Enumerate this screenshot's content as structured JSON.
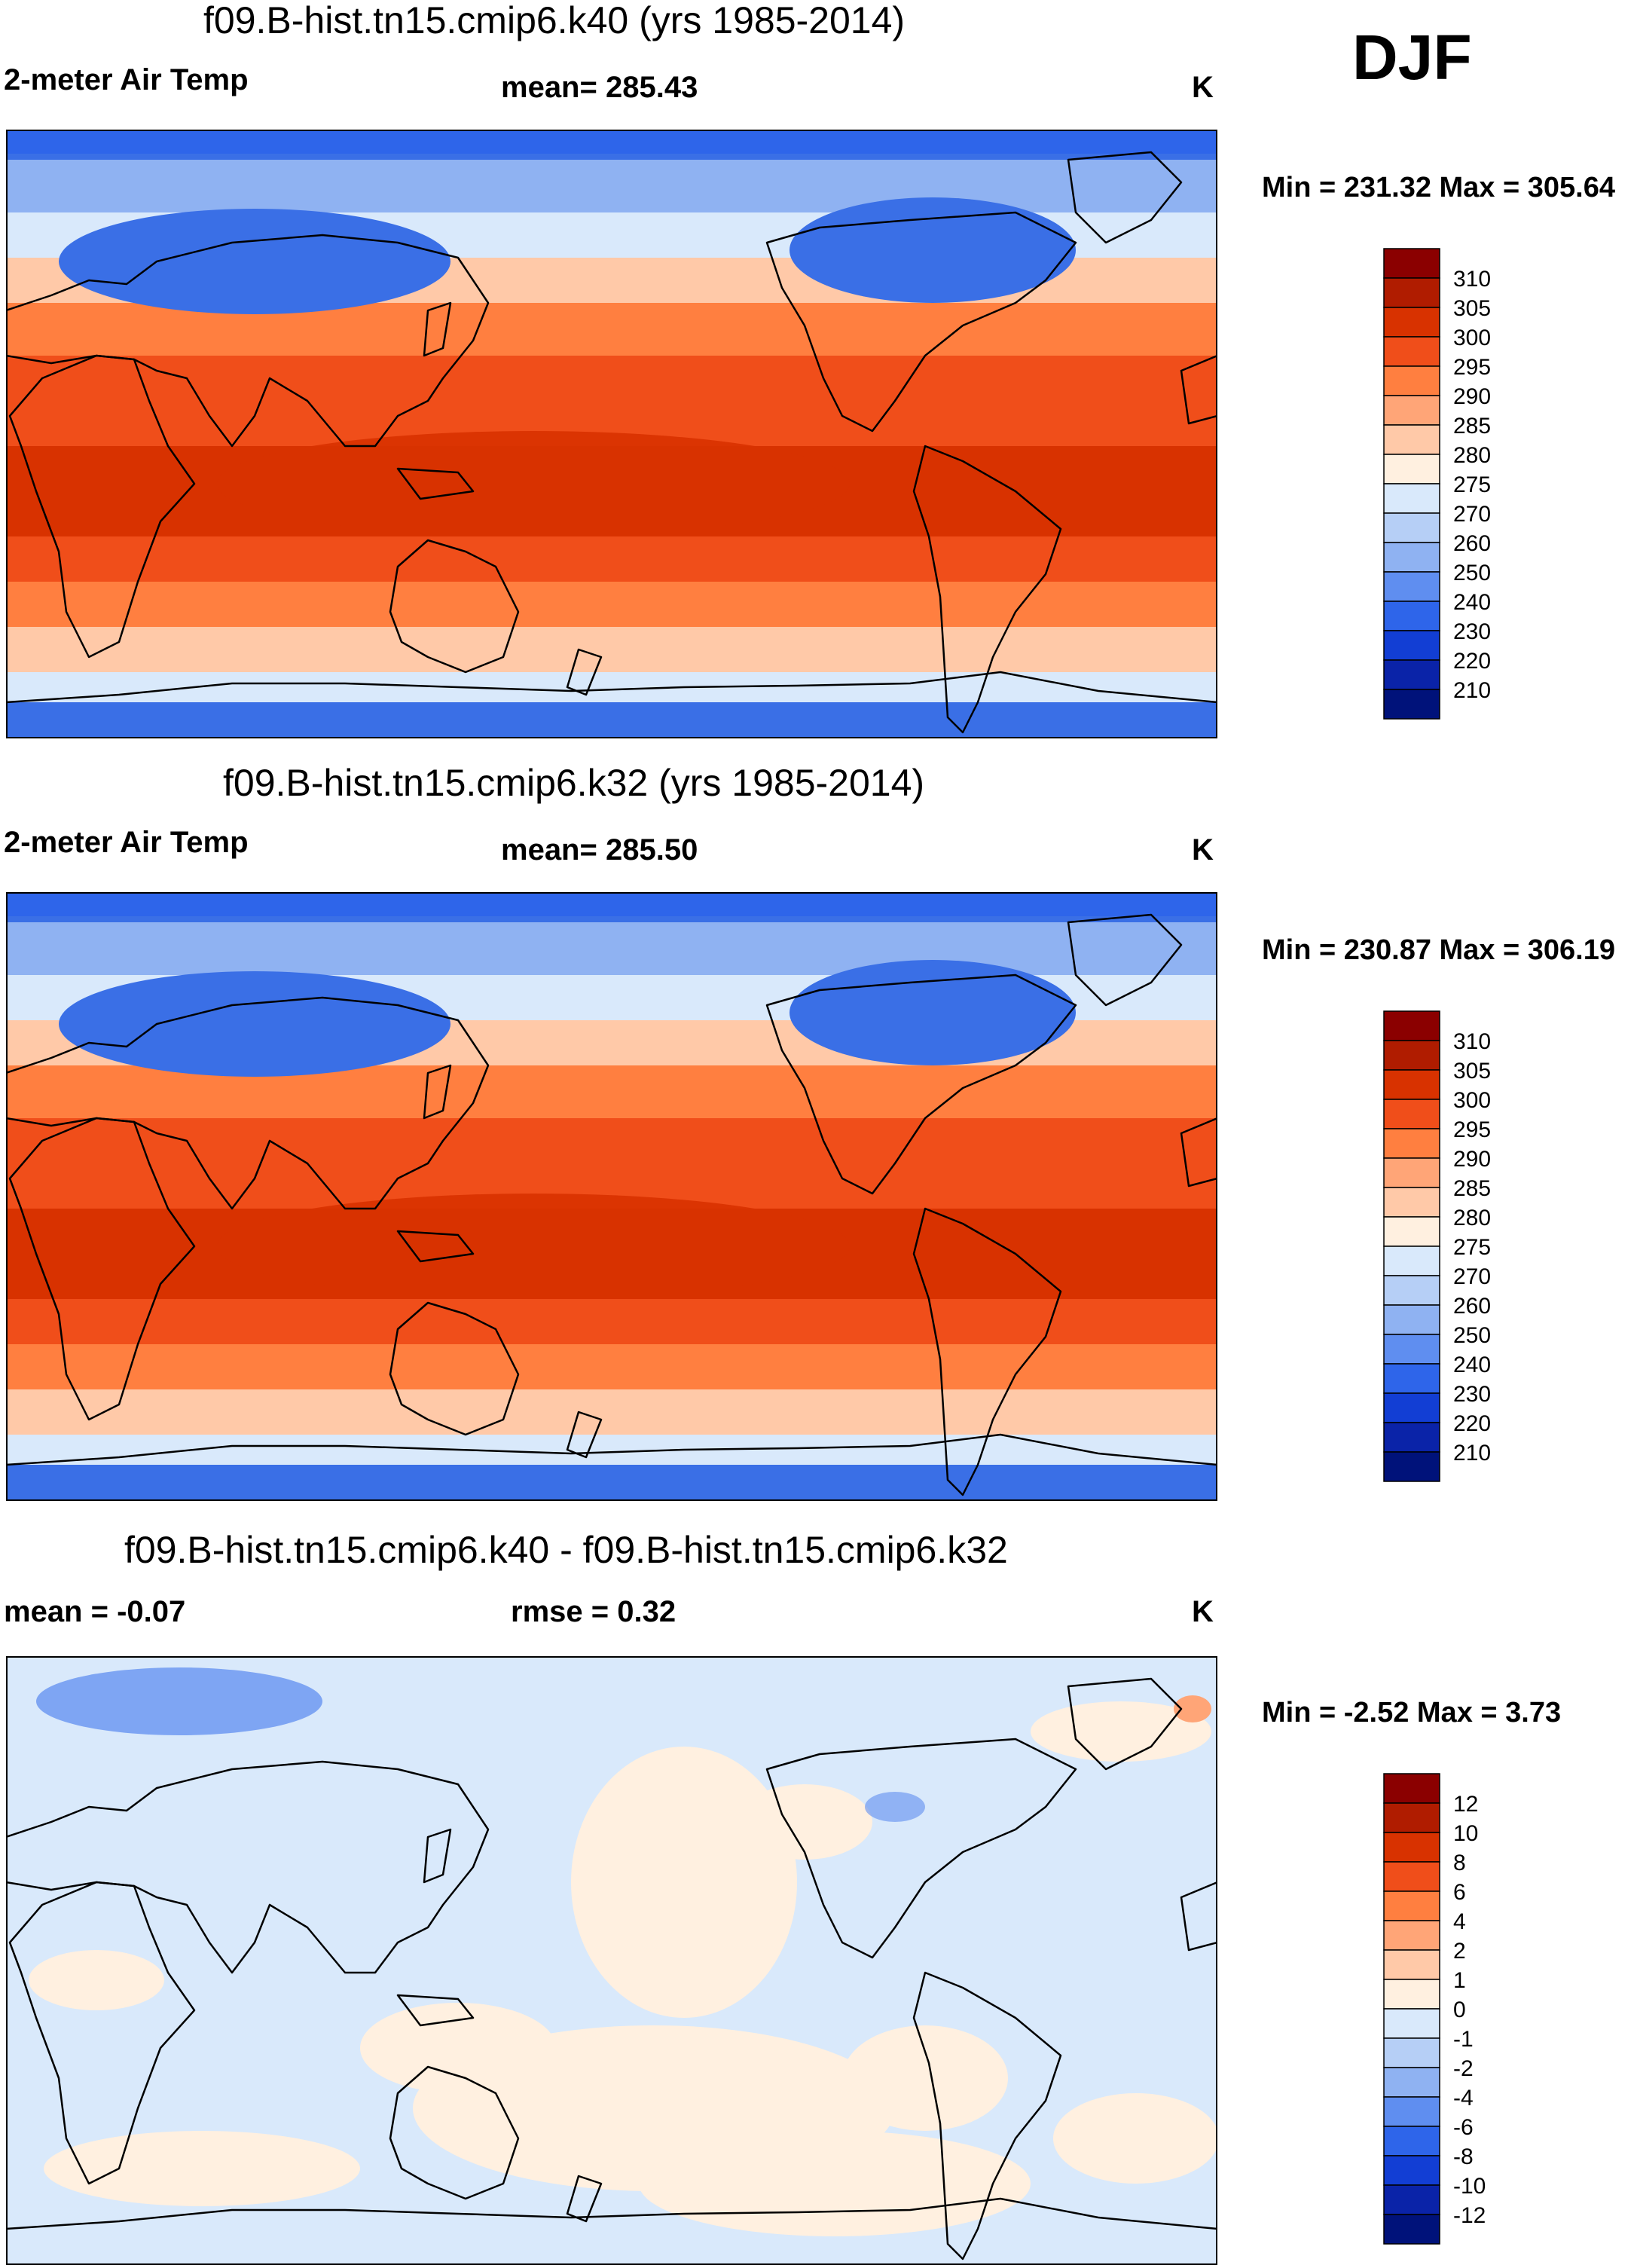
{
  "season": "DJF",
  "panels": [
    {
      "title": "f09.B-hist.tn15.cmip6.k40 (yrs 1985-2014)",
      "variable": "2-meter Air Temp",
      "stat_center": "mean= 285.43",
      "units": "K",
      "minmax": "Min = 231.32 Max = 305.64",
      "colorbar": {
        "labels": [
          "310",
          "305",
          "300",
          "295",
          "290",
          "285",
          "280",
          "275",
          "270",
          "260",
          "250",
          "240",
          "230",
          "220",
          "210"
        ],
        "colors": [
          "#8b0000",
          "#b01c00",
          "#d83200",
          "#f04e1a",
          "#ff7f40",
          "#ffa577",
          "#ffc9a8",
          "#fff0e0",
          "#d9e9fb",
          "#b6cff6",
          "#8fb2f2",
          "#5f8ef0",
          "#2e65ea",
          "#123ed4",
          "#0a23a8",
          "#00127a"
        ]
      }
    },
    {
      "title": "f09.B-hist.tn15.cmip6.k32 (yrs 1985-2014)",
      "variable": "2-meter Air Temp",
      "stat_center": "mean= 285.50",
      "units": "K",
      "minmax": "Min = 230.87 Max = 306.19",
      "colorbar": {
        "labels": [
          "310",
          "305",
          "300",
          "295",
          "290",
          "285",
          "280",
          "275",
          "270",
          "260",
          "250",
          "240",
          "230",
          "220",
          "210"
        ],
        "colors": [
          "#8b0000",
          "#b01c00",
          "#d83200",
          "#f04e1a",
          "#ff7f40",
          "#ffa577",
          "#ffc9a8",
          "#fff0e0",
          "#d9e9fb",
          "#b6cff6",
          "#8fb2f2",
          "#5f8ef0",
          "#2e65ea",
          "#123ed4",
          "#0a23a8",
          "#00127a"
        ]
      }
    },
    {
      "title": "f09.B-hist.tn15.cmip6.k40 - f09.B-hist.tn15.cmip6.k32",
      "variable": "mean =  -0.07",
      "stat_center": "rmse =   0.32",
      "units": "K",
      "minmax": "Min =  -2.52 Max =   3.73",
      "colorbar": {
        "labels": [
          "12",
          "10",
          "8",
          "6",
          "4",
          "2",
          "1",
          "0",
          "-1",
          "-2",
          "-4",
          "-6",
          "-8",
          "-10",
          "-12"
        ],
        "colors": [
          "#8b0000",
          "#b01c00",
          "#d83200",
          "#f04e1a",
          "#ff7f40",
          "#ffa577",
          "#ffc9a8",
          "#fff0e0",
          "#d9e9fb",
          "#b6cff6",
          "#8fb2f2",
          "#5f8ef0",
          "#2e65ea",
          "#123ed4",
          "#0a23a8",
          "#00127a"
        ]
      }
    }
  ],
  "map_colors": {
    "polar": "#3a6fe6",
    "subpolar": "#8fb2f2",
    "cool": "#d9e9fb",
    "mild": "#ffc9a8",
    "warm": "#ff7f40",
    "hot": "#f04e1a",
    "tropical": "#d83200",
    "diff_neg": "#d9e9fb",
    "diff_pos": "#fff0e0",
    "diff_strong_neg": "#5f8ef0",
    "diff_strong_pos": "#ffa577",
    "coast": "#000000"
  }
}
